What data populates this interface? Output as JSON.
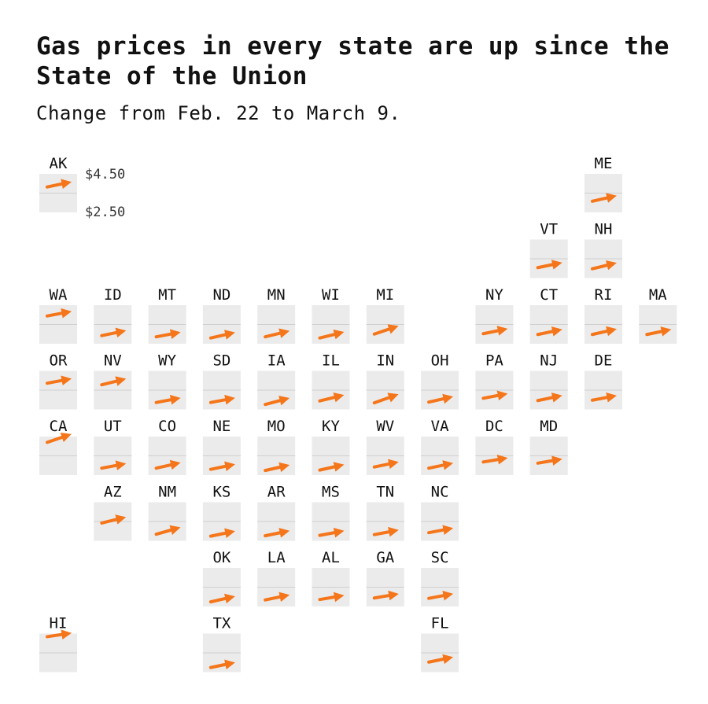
{
  "title": "Gas prices in every state are up since the State of the Union",
  "subtitle": "Change from Feb. 22 to March 9.",
  "chart_data": {
    "type": "line",
    "title": "Gas prices in every state are up since the State of the Union",
    "subtitle": "Change from Feb. 22 to March 9.",
    "layout": "tile grid map (one small chart per state)",
    "x": [
      "Feb. 22",
      "March 9"
    ],
    "ylim": [
      2.5,
      4.5
    ],
    "y_tick_labels": [
      "$4.50",
      "$2.50"
    ],
    "gridline_value": 3.5,
    "colors": {
      "line": "#f5761a",
      "tile": "#ebebeb",
      "gridline": "#cfcfcf",
      "text": "#111111"
    },
    "states": [
      {
        "code": "AK",
        "row": 0,
        "col": 0,
        "values": [
          3.82,
          4.04
        ]
      },
      {
        "code": "ME",
        "row": 0,
        "col": 10,
        "values": [
          3.08,
          3.32
        ]
      },
      {
        "code": "VT",
        "row": 1,
        "col": 9,
        "values": [
          3.04,
          3.26
        ]
      },
      {
        "code": "NH",
        "row": 1,
        "col": 10,
        "values": [
          2.98,
          3.24
        ]
      },
      {
        "code": "WA",
        "row": 2,
        "col": 0,
        "values": [
          3.94,
          4.14
        ]
      },
      {
        "code": "ID",
        "row": 2,
        "col": 1,
        "values": [
          2.92,
          3.14
        ]
      },
      {
        "code": "MT",
        "row": 2,
        "col": 2,
        "values": [
          2.86,
          3.06
        ]
      },
      {
        "code": "ND",
        "row": 2,
        "col": 3,
        "values": [
          2.8,
          3.04
        ]
      },
      {
        "code": "MN",
        "row": 2,
        "col": 4,
        "values": [
          2.86,
          3.12
        ]
      },
      {
        "code": "WI",
        "row": 2,
        "col": 5,
        "values": [
          2.8,
          3.06
        ]
      },
      {
        "code": "MI",
        "row": 2,
        "col": 6,
        "values": [
          3.0,
          3.36
        ]
      },
      {
        "code": "NY",
        "row": 2,
        "col": 8,
        "values": [
          3.02,
          3.24
        ]
      },
      {
        "code": "CT",
        "row": 2,
        "col": 9,
        "values": [
          2.98,
          3.2
        ]
      },
      {
        "code": "RI",
        "row": 2,
        "col": 10,
        "values": [
          2.98,
          3.22
        ]
      },
      {
        "code": "MA",
        "row": 2,
        "col": 11,
        "values": [
          2.98,
          3.2
        ]
      },
      {
        "code": "OR",
        "row": 3,
        "col": 0,
        "values": [
          3.86,
          4.06
        ]
      },
      {
        "code": "NV",
        "row": 3,
        "col": 1,
        "values": [
          3.78,
          4.04
        ]
      },
      {
        "code": "WY",
        "row": 3,
        "col": 2,
        "values": [
          2.86,
          3.06
        ]
      },
      {
        "code": "SD",
        "row": 3,
        "col": 3,
        "values": [
          2.86,
          3.06
        ]
      },
      {
        "code": "IA",
        "row": 3,
        "col": 4,
        "values": [
          2.76,
          3.04
        ]
      },
      {
        "code": "IL",
        "row": 3,
        "col": 5,
        "values": [
          2.94,
          3.2
        ]
      },
      {
        "code": "IN",
        "row": 3,
        "col": 6,
        "values": [
          2.84,
          3.22
        ]
      },
      {
        "code": "OH",
        "row": 3,
        "col": 7,
        "values": [
          2.88,
          3.12
        ]
      },
      {
        "code": "PA",
        "row": 3,
        "col": 8,
        "values": [
          3.08,
          3.28
        ]
      },
      {
        "code": "NJ",
        "row": 3,
        "col": 9,
        "values": [
          2.96,
          3.18
        ]
      },
      {
        "code": "DE",
        "row": 3,
        "col": 10,
        "values": [
          2.98,
          3.18
        ]
      },
      {
        "code": "CA",
        "row": 4,
        "col": 0,
        "values": [
          4.2,
          4.56
        ]
      },
      {
        "code": "UT",
        "row": 4,
        "col": 1,
        "values": [
          2.86,
          3.06
        ]
      },
      {
        "code": "CO",
        "row": 4,
        "col": 2,
        "values": [
          2.86,
          3.1
        ]
      },
      {
        "code": "NE",
        "row": 4,
        "col": 3,
        "values": [
          2.8,
          3.02
        ]
      },
      {
        "code": "MO",
        "row": 4,
        "col": 4,
        "values": [
          2.74,
          2.98
        ]
      },
      {
        "code": "KY",
        "row": 4,
        "col": 5,
        "values": [
          2.76,
          3.0
        ]
      },
      {
        "code": "WV",
        "row": 4,
        "col": 6,
        "values": [
          2.92,
          3.14
        ]
      },
      {
        "code": "VA",
        "row": 4,
        "col": 7,
        "values": [
          2.86,
          3.08
        ]
      },
      {
        "code": "DC",
        "row": 4,
        "col": 8,
        "values": [
          3.18,
          3.36
        ]
      },
      {
        "code": "MD",
        "row": 4,
        "col": 9,
        "values": [
          3.12,
          3.3
        ]
      },
      {
        "code": "AZ",
        "row": 5,
        "col": 1,
        "values": [
          3.42,
          3.68
        ]
      },
      {
        "code": "NM",
        "row": 5,
        "col": 2,
        "values": [
          2.84,
          3.14
        ]
      },
      {
        "code": "KS",
        "row": 5,
        "col": 3,
        "values": [
          2.74,
          2.96
        ]
      },
      {
        "code": "AR",
        "row": 5,
        "col": 4,
        "values": [
          2.76,
          2.98
        ]
      },
      {
        "code": "MS",
        "row": 5,
        "col": 5,
        "values": [
          2.78,
          2.98
        ]
      },
      {
        "code": "TN",
        "row": 5,
        "col": 6,
        "values": [
          2.82,
          3.02
        ]
      },
      {
        "code": "NC",
        "row": 5,
        "col": 7,
        "values": [
          2.92,
          3.12
        ]
      },
      {
        "code": "OK",
        "row": 6,
        "col": 3,
        "values": [
          2.74,
          2.98
        ]
      },
      {
        "code": "LA",
        "row": 6,
        "col": 4,
        "values": [
          2.84,
          3.06
        ]
      },
      {
        "code": "AL",
        "row": 6,
        "col": 5,
        "values": [
          2.86,
          3.04
        ]
      },
      {
        "code": "GA",
        "row": 6,
        "col": 6,
        "values": [
          2.94,
          3.12
        ]
      },
      {
        "code": "SC",
        "row": 6,
        "col": 7,
        "values": [
          2.92,
          3.12
        ]
      },
      {
        "code": "HI",
        "row": 7,
        "col": 0,
        "values": [
          4.34,
          4.5
        ]
      },
      {
        "code": "TX",
        "row": 7,
        "col": 3,
        "values": [
          2.74,
          2.96
        ]
      },
      {
        "code": "FL",
        "row": 7,
        "col": 7,
        "values": [
          3.02,
          3.24
        ]
      }
    ]
  }
}
